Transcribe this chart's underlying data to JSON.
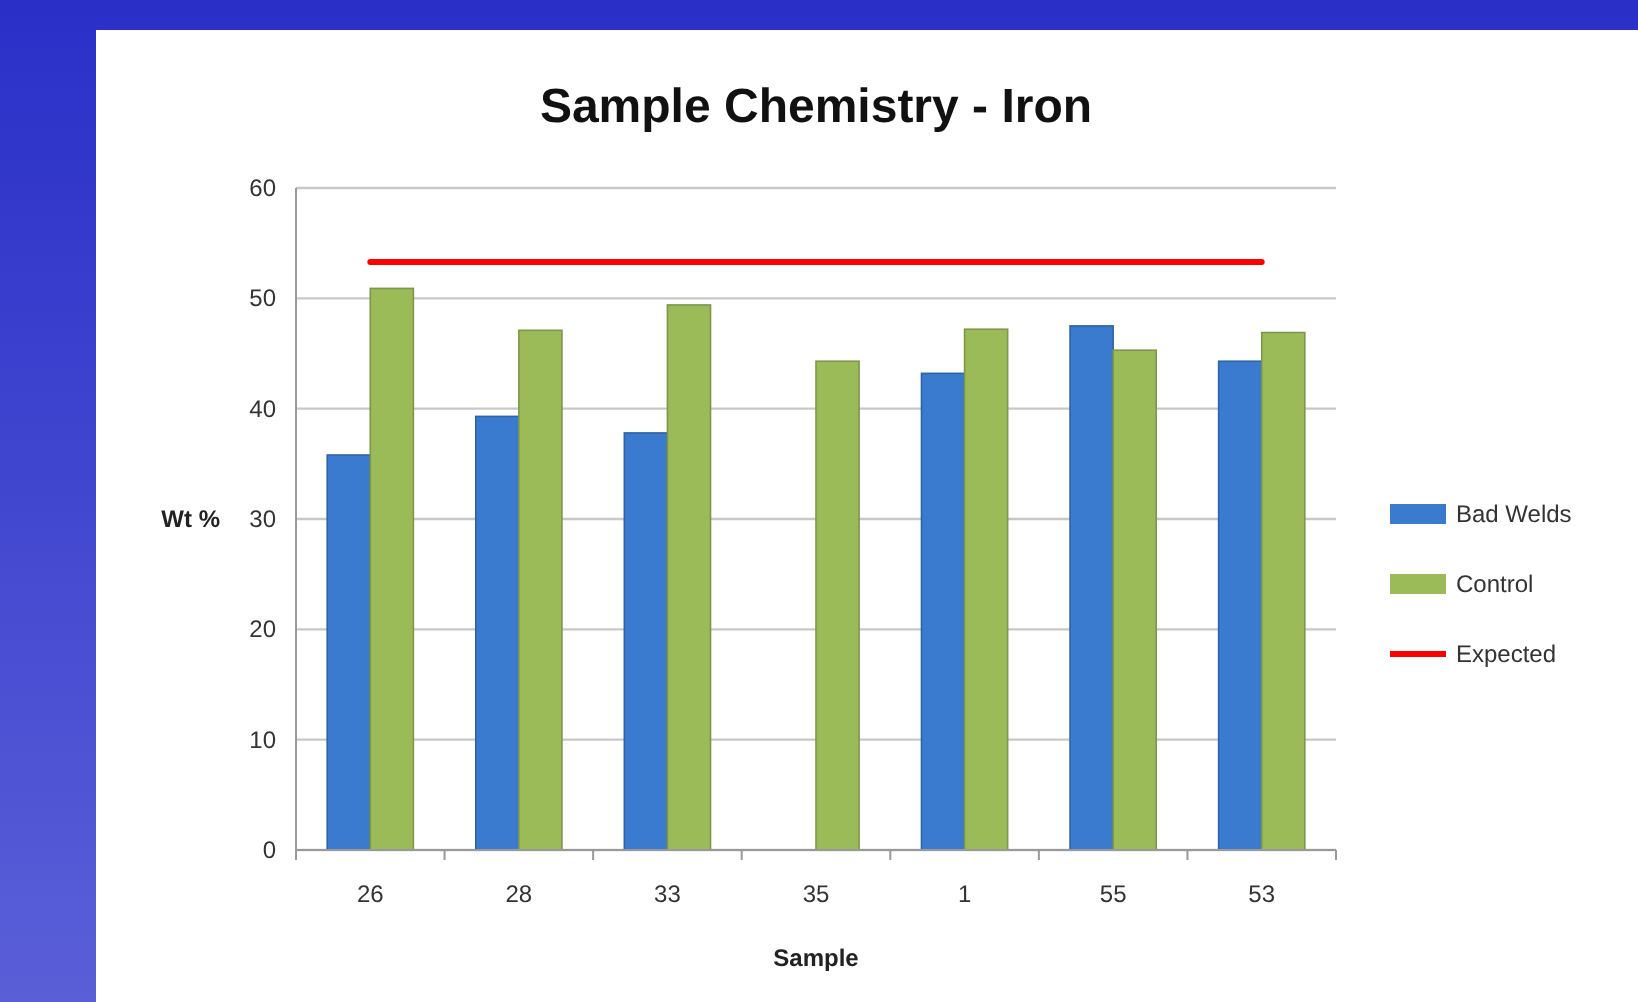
{
  "chart_data": {
    "type": "bar",
    "title": "Sample Chemistry - Iron",
    "xlabel": "Sample",
    "ylabel": "Wt %",
    "categories": [
      "26",
      "28",
      "33",
      "35",
      "1",
      "55",
      "53"
    ],
    "series": [
      {
        "name": "Bad Welds",
        "color": "#3a7bd0",
        "values": [
          35.8,
          39.3,
          37.8,
          null,
          43.2,
          47.5,
          44.3
        ]
      },
      {
        "name": "Control",
        "color": "#9bbb59",
        "values": [
          50.9,
          47.1,
          49.4,
          44.3,
          47.2,
          45.3,
          46.9
        ]
      },
      {
        "name": "Expected",
        "type": "line",
        "color": "#ff0000",
        "values": [
          53.3,
          53.3,
          53.3,
          53.3,
          53.3,
          53.3,
          53.3
        ]
      }
    ],
    "ylim": [
      0,
      60
    ],
    "yticks": [
      0,
      10,
      20,
      30,
      40,
      50,
      60
    ],
    "grid": "y",
    "legend": "right",
    "marker": "none",
    "line_style": "solid"
  }
}
